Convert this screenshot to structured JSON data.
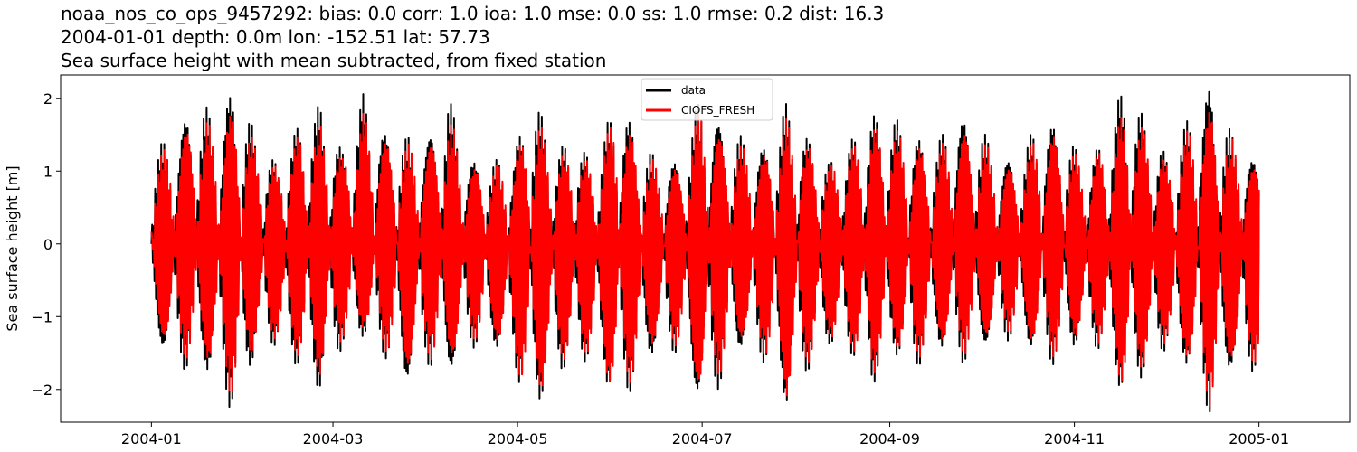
{
  "chart_data": {
    "type": "line",
    "title_lines": [
      "noaa_nos_co_ops_9457292: bias: 0.0  corr: 1.0  ioa: 1.0  mse: 0.0  ss: 1.0  rmse: 0.2  dist: 16.3",
      "2004-01-01 depth: 0.0m lon: -152.51 lat: 57.73",
      "Sea surface height with mean subtracted, from fixed station"
    ],
    "xlabel": "",
    "ylabel": "Sea surface height [m]",
    "xlim": [
      "2003-12-02",
      "2005-01-31"
    ],
    "ylim": [
      -2.45,
      2.32
    ],
    "x_ticks": [
      "2004-01",
      "2004-03",
      "2004-05",
      "2004-07",
      "2004-09",
      "2004-11",
      "2005-01"
    ],
    "y_ticks": [
      -2,
      -1,
      0,
      1,
      2
    ],
    "y_tick_labels": [
      "−2",
      "−1",
      "0",
      "1",
      "2"
    ],
    "grid": false,
    "legend": {
      "position": "top-center"
    },
    "x_range": [
      "2004-01-01",
      "2005-01-01"
    ],
    "series": [
      {
        "name": "data",
        "color": "#000000",
        "envelope": {
          "dates": [
            "2004-01-01",
            "2004-01-08",
            "2004-01-15",
            "2004-01-22",
            "2004-01-29",
            "2004-02-05",
            "2004-02-12",
            "2004-02-19",
            "2004-02-26",
            "2004-03-04",
            "2004-03-11",
            "2004-03-18",
            "2004-03-25",
            "2004-04-01",
            "2004-04-08",
            "2004-04-15",
            "2004-04-22",
            "2004-04-29",
            "2004-05-06",
            "2004-05-13",
            "2004-05-20",
            "2004-05-27",
            "2004-06-03",
            "2004-06-10",
            "2004-06-17",
            "2004-06-24",
            "2004-07-01",
            "2004-07-08",
            "2004-07-15",
            "2004-07-22",
            "2004-07-29",
            "2004-08-05",
            "2004-08-12",
            "2004-08-19",
            "2004-08-26",
            "2004-09-02",
            "2004-09-09",
            "2004-09-16",
            "2004-09-23",
            "2004-09-30",
            "2004-10-07",
            "2004-10-14",
            "2004-10-21",
            "2004-10-28",
            "2004-11-04",
            "2004-11-11",
            "2004-11-18",
            "2004-11-25",
            "2004-12-02",
            "2004-12-09",
            "2004-12-16",
            "2004-12-23",
            "2004-12-30"
          ],
          "upper": [
            1.2,
            1.3,
            1.85,
            1.6,
            2.05,
            1.3,
            1.0,
            1.55,
            1.75,
            1.2,
            1.9,
            1.45,
            1.3,
            1.35,
            1.85,
            1.1,
            1.0,
            1.1,
            1.9,
            1.2,
            1.3,
            1.0,
            1.95,
            1.3,
            1.0,
            1.1,
            1.9,
            1.5,
            1.3,
            1.25,
            1.75,
            1.35,
            1.0,
            1.3,
            1.65,
            1.6,
            1.4,
            1.2,
            1.7,
            1.5,
            1.1,
            1.1,
            1.6,
            1.5,
            1.0,
            1.35,
            2.1,
            1.5,
            1.1,
            1.6,
            2.05,
            1.35,
            1.1
          ],
          "lower": [
            -1.2,
            -1.5,
            -1.6,
            -1.7,
            -2.2,
            -1.3,
            -1.3,
            -1.6,
            -1.9,
            -1.3,
            -1.2,
            -1.4,
            -1.8,
            -1.5,
            -1.7,
            -1.3,
            -1.3,
            -1.5,
            -2.2,
            -1.7,
            -1.5,
            -1.5,
            -2.1,
            -1.7,
            -1.3,
            -1.4,
            -2.15,
            -1.7,
            -1.3,
            -1.5,
            -2.1,
            -1.6,
            -1.3,
            -1.4,
            -1.8,
            -1.4,
            -1.6,
            -1.3,
            -1.5,
            -1.4,
            -1.2,
            -1.2,
            -1.5,
            -1.5,
            -1.2,
            -1.4,
            -2.0,
            -1.6,
            -1.3,
            -1.6,
            -2.15,
            -1.6,
            -1.6
          ]
        }
      },
      {
        "name": "CIOFS_FRESH",
        "color": "#ff0000",
        "envelope": {
          "dates": [
            "2004-01-01",
            "2004-01-08",
            "2004-01-15",
            "2004-01-22",
            "2004-01-29",
            "2004-02-05",
            "2004-02-12",
            "2004-02-19",
            "2004-02-26",
            "2004-03-04",
            "2004-03-11",
            "2004-03-18",
            "2004-03-25",
            "2004-04-01",
            "2004-04-08",
            "2004-04-15",
            "2004-04-22",
            "2004-04-29",
            "2004-05-06",
            "2004-05-13",
            "2004-05-20",
            "2004-05-27",
            "2004-06-03",
            "2004-06-10",
            "2004-06-17",
            "2004-06-24",
            "2004-07-01",
            "2004-07-08",
            "2004-07-15",
            "2004-07-22",
            "2004-07-29",
            "2004-08-05",
            "2004-08-12",
            "2004-08-19",
            "2004-08-26",
            "2004-09-02",
            "2004-09-09",
            "2004-09-16",
            "2004-09-23",
            "2004-09-30",
            "2004-10-07",
            "2004-10-14",
            "2004-10-21",
            "2004-10-28",
            "2004-11-04",
            "2004-11-11",
            "2004-11-18",
            "2004-11-25",
            "2004-12-02",
            "2004-12-09",
            "2004-12-16",
            "2004-12-23",
            "2004-12-30"
          ],
          "upper": [
            1.1,
            1.2,
            1.65,
            1.45,
            1.75,
            1.2,
            0.95,
            1.4,
            1.5,
            1.1,
            1.65,
            1.35,
            1.2,
            1.25,
            1.6,
            1.0,
            0.95,
            1.0,
            1.7,
            1.1,
            1.2,
            0.95,
            1.75,
            1.2,
            0.95,
            1.0,
            1.75,
            1.35,
            1.2,
            1.15,
            1.55,
            1.25,
            0.95,
            1.2,
            1.5,
            1.45,
            1.3,
            1.1,
            1.5,
            1.4,
            1.0,
            1.0,
            1.45,
            1.4,
            0.95,
            1.25,
            1.7,
            1.4,
            1.0,
            1.45,
            1.75,
            1.3,
            1.0
          ],
          "lower": [
            -1.1,
            -1.35,
            -1.45,
            -1.55,
            -2.0,
            -1.2,
            -1.2,
            -1.45,
            -1.7,
            -1.2,
            -1.1,
            -1.3,
            -1.65,
            -1.4,
            -1.55,
            -1.2,
            -1.2,
            -1.4,
            -2.1,
            -1.55,
            -1.4,
            -1.4,
            -2.05,
            -1.55,
            -1.2,
            -1.3,
            -2.0,
            -1.55,
            -1.2,
            -1.4,
            -2.0,
            -1.5,
            -1.2,
            -1.3,
            -1.7,
            -1.3,
            -1.5,
            -1.2,
            -1.4,
            -1.3,
            -1.1,
            -1.1,
            -1.4,
            -1.4,
            -1.1,
            -1.3,
            -1.9,
            -1.5,
            -1.2,
            -1.5,
            -2.05,
            -1.5,
            -1.5
          ]
        }
      }
    ]
  }
}
